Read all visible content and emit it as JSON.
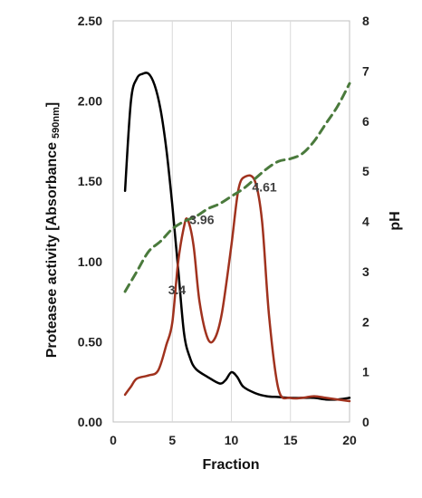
{
  "chart_data": {
    "type": "line",
    "xlabel": "Fraction",
    "ylabel_left": "Proteasee activity [Absorbance",
    "ylabel_left_sub": "590nm",
    "ylabel_left_end": "]",
    "ylabel_right": "pH",
    "xlim": [
      0,
      20
    ],
    "ylim_left": [
      0,
      2.5
    ],
    "ylim_right": [
      0,
      8
    ],
    "x_ticks": [
      "0",
      "5",
      "10",
      "15",
      "20"
    ],
    "y_left_ticks": [
      "0.00",
      "0.50",
      "1.00",
      "1.50",
      "2.00",
      "2.50"
    ],
    "y_right_ticks": [
      "0",
      "1",
      "2",
      "3",
      "4",
      "5",
      "6",
      "7",
      "8"
    ],
    "grid": "vertical",
    "series": [
      {
        "axis": "left",
        "color": "#000000",
        "style": "solid",
        "x": [
          1,
          1.5,
          2,
          2.5,
          3,
          3.5,
          4,
          4.5,
          5,
          5.5,
          6,
          6.5,
          7,
          8,
          9,
          9.5,
          10,
          10.5,
          11,
          12,
          13,
          14,
          15,
          16,
          17,
          18,
          19,
          20
        ],
        "y": [
          1.44,
          2.0,
          2.14,
          2.17,
          2.17,
          2.1,
          1.95,
          1.7,
          1.35,
          0.95,
          0.55,
          0.4,
          0.33,
          0.28,
          0.24,
          0.26,
          0.31,
          0.28,
          0.22,
          0.18,
          0.16,
          0.155,
          0.15,
          0.15,
          0.15,
          0.14,
          0.14,
          0.15
        ]
      },
      {
        "axis": "left",
        "color": "#a0321e",
        "style": "solid",
        "x": [
          1,
          1.5,
          2,
          3,
          3.8,
          4.5,
          5,
          5.5,
          6,
          6.3,
          6.8,
          7.3,
          8,
          8.6,
          9.2,
          10,
          10.6,
          11.2,
          12,
          12.6,
          13.2,
          14,
          15,
          16,
          17,
          18,
          19,
          20
        ],
        "y": [
          0.17,
          0.22,
          0.27,
          0.29,
          0.32,
          0.48,
          0.62,
          1.0,
          1.22,
          1.26,
          1.1,
          0.75,
          0.52,
          0.52,
          0.68,
          1.1,
          1.45,
          1.53,
          1.5,
          1.25,
          0.65,
          0.2,
          0.15,
          0.15,
          0.16,
          0.15,
          0.14,
          0.13
        ]
      },
      {
        "axis": "right",
        "color": "#4a7a3c",
        "style": "dashed",
        "x": [
          1,
          2,
          3,
          4,
          5,
          6,
          7,
          8,
          9,
          10,
          11,
          12,
          13,
          14,
          15,
          16,
          17,
          18,
          19,
          20
        ],
        "y": [
          2.6,
          3.0,
          3.4,
          3.6,
          3.85,
          4.0,
          4.1,
          4.25,
          4.35,
          4.5,
          4.65,
          4.85,
          5.05,
          5.2,
          5.25,
          5.35,
          5.6,
          5.95,
          6.3,
          6.75
        ]
      }
    ],
    "annotations": [
      {
        "text": "3.4",
        "x": 5.4,
        "y_right": 2.55
      },
      {
        "text": "3.96",
        "x": 7.5,
        "y_right": 3.95
      },
      {
        "text": "4.61",
        "x": 12.8,
        "y_right": 4.6
      }
    ]
  }
}
